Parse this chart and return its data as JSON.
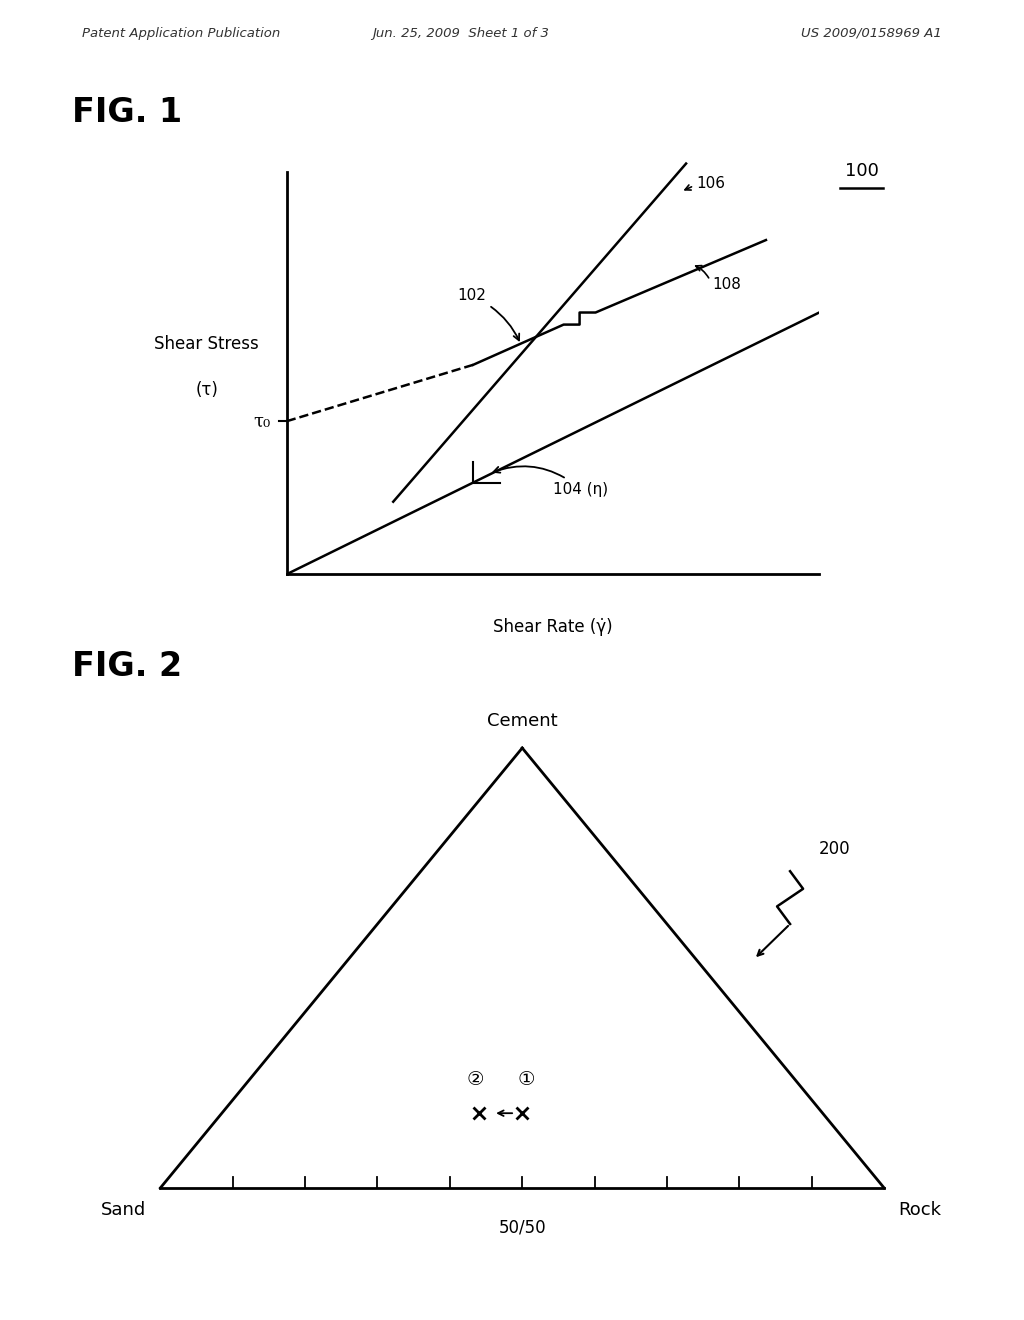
{
  "bg_color": "#ffffff",
  "header_left": "Patent Application Publication",
  "header_mid": "Jun. 25, 2009  Sheet 1 of 3",
  "header_right": "US 2009/0158969 A1",
  "fig1_title": "FIG. 1",
  "fig2_title": "FIG. 2",
  "shear_stress_label_line1": "Shear Stress",
  "shear_stress_label_line2": "(τ)",
  "shear_rate_label": "Shear Rate (γ̇)",
  "tau0_label": "τ₀",
  "label_100": "100",
  "label_102": "102",
  "label_104": "104 (η)",
  "label_106": "106",
  "label_108": "108",
  "label_200": "200",
  "tri_top": "Cement",
  "tri_bl": "Sand",
  "tri_br": "Rock",
  "tri_bot_mid": "50/50",
  "marker1_label": "①",
  "marker2_label": "②"
}
